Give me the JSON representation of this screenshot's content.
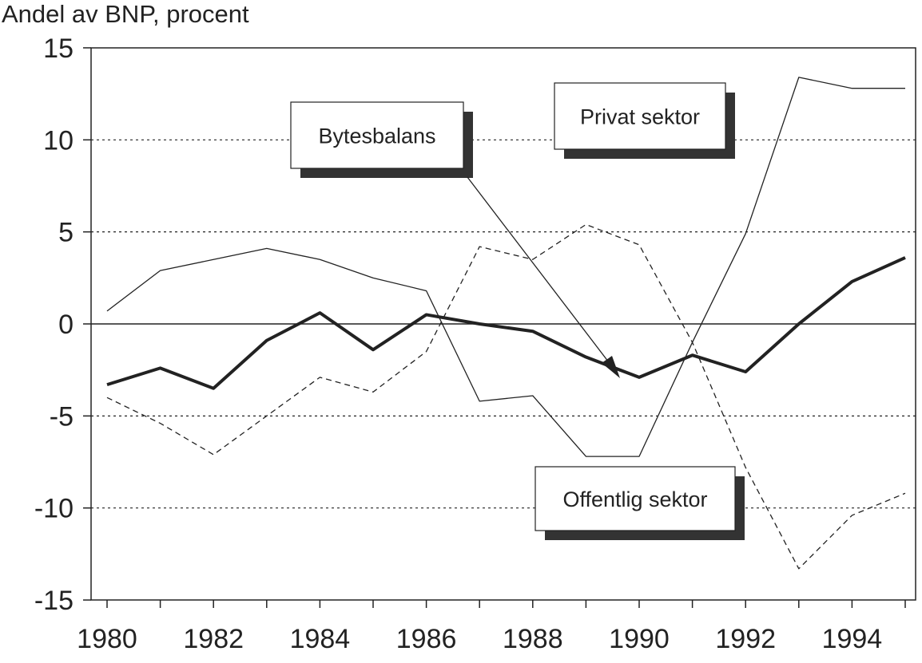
{
  "chart_data": {
    "type": "line",
    "ylabel": "Andel av BNP, procent",
    "xlabel": "",
    "x": [
      1980,
      1981,
      1982,
      1983,
      1984,
      1985,
      1986,
      1987,
      1988,
      1989,
      1990,
      1991,
      1992,
      1993,
      1994,
      1995
    ],
    "xticks": [
      "1980",
      "1982",
      "1984",
      "1986",
      "1988",
      "1990",
      "1992",
      "1994"
    ],
    "yticks": [
      "15",
      "10",
      "5",
      "0",
      "-5",
      "-10",
      "-15"
    ],
    "ylim": [
      -15,
      15
    ],
    "xlim": [
      1979.8,
      1995.2
    ],
    "grid": "horizontal dotted",
    "series": [
      {
        "name": "Bytesbalans",
        "style": "thick",
        "values": [
          -3.3,
          -2.4,
          -3.5,
          -0.9,
          0.6,
          -1.4,
          0.5,
          0.0,
          -0.4,
          -1.8,
          -2.9,
          -1.7,
          -2.6,
          0.0,
          2.3,
          3.6
        ]
      },
      {
        "name": "Privat sektor",
        "style": "thin",
        "values": [
          0.7,
          2.9,
          3.5,
          4.1,
          3.5,
          2.5,
          1.8,
          -4.2,
          -3.9,
          -7.2,
          -7.2,
          -1.0,
          4.9,
          13.4,
          12.8,
          12.8
        ]
      },
      {
        "name": "Offentlig sektor",
        "style": "dashed",
        "values": [
          -4.0,
          -5.4,
          -7.1,
          -5.0,
          -2.9,
          -3.7,
          -1.5,
          4.2,
          3.5,
          5.4,
          4.3,
          -1.0,
          -7.8,
          -13.3,
          -10.4,
          -9.2
        ]
      }
    ]
  }
}
